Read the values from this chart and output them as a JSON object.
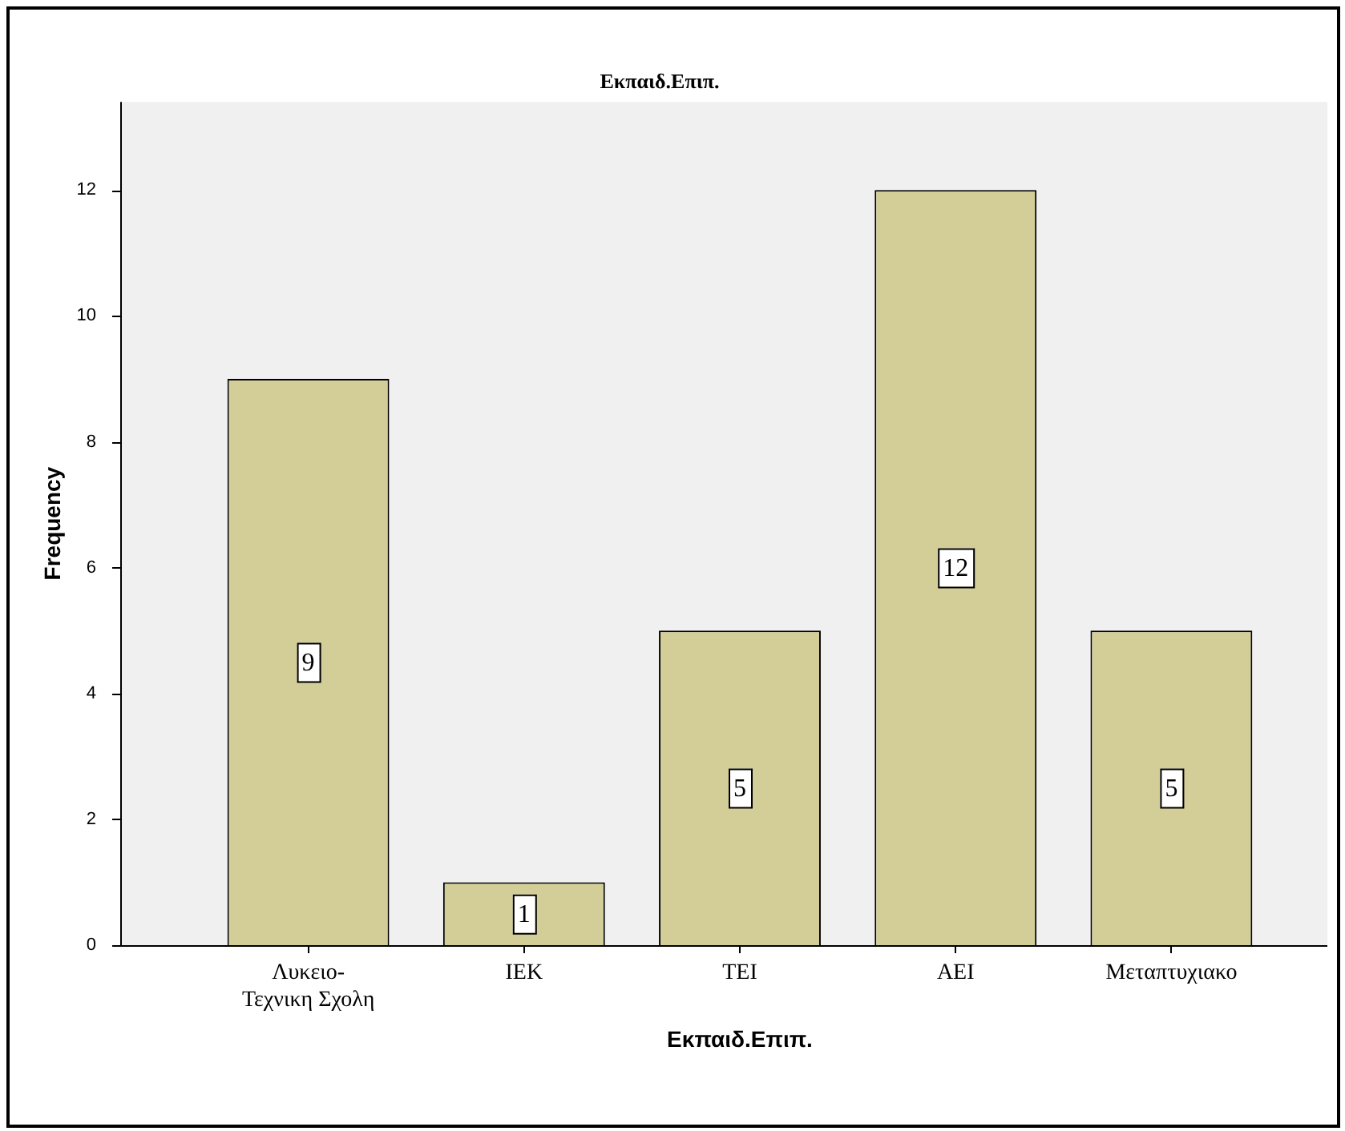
{
  "chart_data": {
    "type": "bar",
    "title": "Εκπαιδ.Επιπ.",
    "xlabel": "Εκπαιδ.Επιπ.",
    "ylabel": "Frequency",
    "categories": [
      "Λυκειο-Τεχνικη Σχολη",
      "ΙΕΚ",
      "ΤΕΙ",
      "ΑΕΙ",
      "Μεταπτυχιακο"
    ],
    "values": [
      9,
      1,
      5,
      12,
      5
    ],
    "color": "#d3ce97",
    "ylim": [
      0,
      13.4
    ],
    "yticks": [
      0,
      2,
      4,
      6,
      8,
      10,
      12
    ],
    "data_labels": true
  }
}
